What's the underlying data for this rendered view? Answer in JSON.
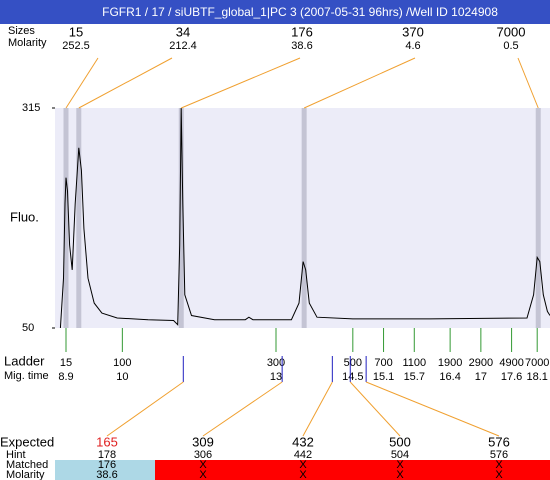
{
  "header": {
    "title": "FGFR1 / 17 / siUBTF_global_1|PC 3 (2007-05-31 96hrs) /Well ID 1024908"
  },
  "top": {
    "size_label": "Sizes",
    "molarity_label": "Molarity",
    "sizes": [
      15,
      34,
      176,
      370,
      7000
    ],
    "molarities": [
      252.5,
      212.4,
      38.6,
      4.6,
      0.5
    ]
  },
  "chart_data": {
    "type": "line",
    "ylabel": "Fluo.",
    "ylim": [
      50,
      315
    ],
    "yticks": [
      50,
      315
    ],
    "xlim": [
      8.685,
      18.35
    ],
    "x": [
      8.79,
      8.85,
      8.88,
      8.9,
      8.93,
      8.97,
      9.02,
      9.08,
      9.15,
      9.2,
      9.25,
      9.33,
      9.45,
      9.6,
      9.9,
      10.5,
      11.0,
      11.08,
      11.12,
      11.15,
      11.18,
      11.22,
      11.35,
      11.8,
      12.4,
      12.47,
      12.55,
      13.3,
      13.45,
      13.53,
      13.58,
      13.65,
      13.8,
      14.5,
      16.0,
      17.9,
      18.03,
      18.1,
      18.15,
      18.22,
      18.3,
      18.35
    ],
    "series": [
      {
        "color": "#000000",
        "values": [
          50,
          110,
          200,
          231,
          215,
          150,
          120,
          200,
          267,
          240,
          170,
          110,
          80,
          68,
          62,
          60,
          59,
          54,
          150,
          315,
          200,
          90,
          65,
          60,
          60,
          63,
          60,
          60,
          80,
          130,
          120,
          80,
          63,
          61,
          61,
          62,
          90,
          135,
          130,
          90,
          70,
          65
        ]
      }
    ],
    "peaks": [
      8.9,
      9.15,
      11.15,
      13.55,
      18.12
    ],
    "peak_color": "#c4c4d4"
  },
  "ladder": {
    "label": "Ladder",
    "mig_label": "Mig. time",
    "sizes": [
      15,
      100,
      300,
      500,
      700,
      1100,
      1900,
      2900,
      4900,
      7000
    ],
    "mig_times": [
      8.9,
      10,
      13,
      14.5,
      15.1,
      15.7,
      16.4,
      17,
      17.6,
      18.1
    ]
  },
  "expected": {
    "label": "Expected",
    "hint_label": "Hint",
    "matched_label": "Matched",
    "molarity_label": "Molarity",
    "sizes": [
      165,
      309,
      432,
      500,
      576
    ],
    "mig_times": [
      11.19,
      13.12,
      14.1,
      14.45,
      14.76
    ],
    "hints": [
      178,
      306,
      442,
      504,
      576
    ],
    "matched": [
      176,
      "X",
      "X",
      "X",
      "X"
    ],
    "molarities": [
      38.6,
      "X",
      "X",
      "X",
      "X"
    ]
  }
}
